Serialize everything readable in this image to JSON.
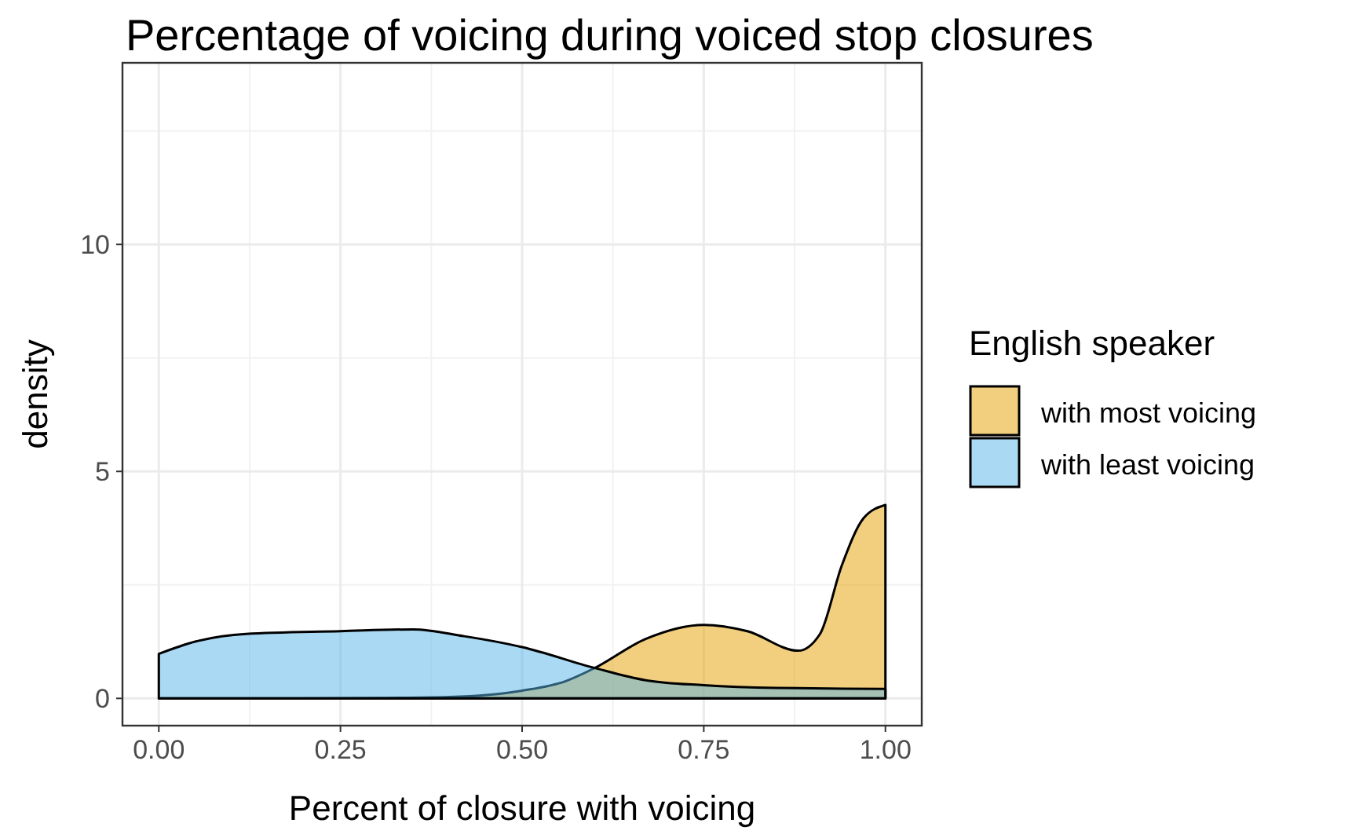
{
  "chart_data": {
    "type": "area",
    "title": "Percentage of voicing during voiced stop closures",
    "xlabel": "Percent of closure with voicing",
    "ylabel": "density",
    "legend_title": "English speaker",
    "series": [
      {
        "name": "with most voicing",
        "color": "#E69F00",
        "x": [
          0,
          0.1,
          0.2,
          0.31,
          0.4,
          0.5,
          0.56,
          0.6,
          0.67,
          0.75,
          0.81,
          0.88,
          0.91,
          0.94,
          0.97,
          1
        ],
        "values": [
          0,
          0,
          0,
          0.01,
          0.03,
          0.17,
          0.38,
          0.67,
          1.31,
          1.62,
          1.48,
          1.05,
          1.42,
          2.93,
          3.97,
          4.26
        ]
      },
      {
        "name": "with least voicing",
        "color": "#56B4E9",
        "x": [
          0,
          0.05,
          0.12,
          0.25,
          0.35,
          0.42,
          0.5,
          0.6,
          0.67,
          0.75,
          0.85,
          1
        ],
        "values": [
          0.98,
          1.25,
          1.42,
          1.48,
          1.52,
          1.37,
          1.13,
          0.67,
          0.4,
          0.29,
          0.23,
          0.21
        ]
      }
    ],
    "xlim": [
      -0.05,
      1.05
    ],
    "ylim": [
      -0.6,
      14
    ],
    "xticks": [
      {
        "value": 0,
        "label": "0.00"
      },
      0.25,
      {
        "value": 0.5,
        "label": "0.50"
      },
      0.75,
      {
        "value": 1,
        "label": "1.00"
      }
    ],
    "yticks": [
      0,
      5,
      10
    ],
    "grid": true,
    "legend": "right"
  }
}
